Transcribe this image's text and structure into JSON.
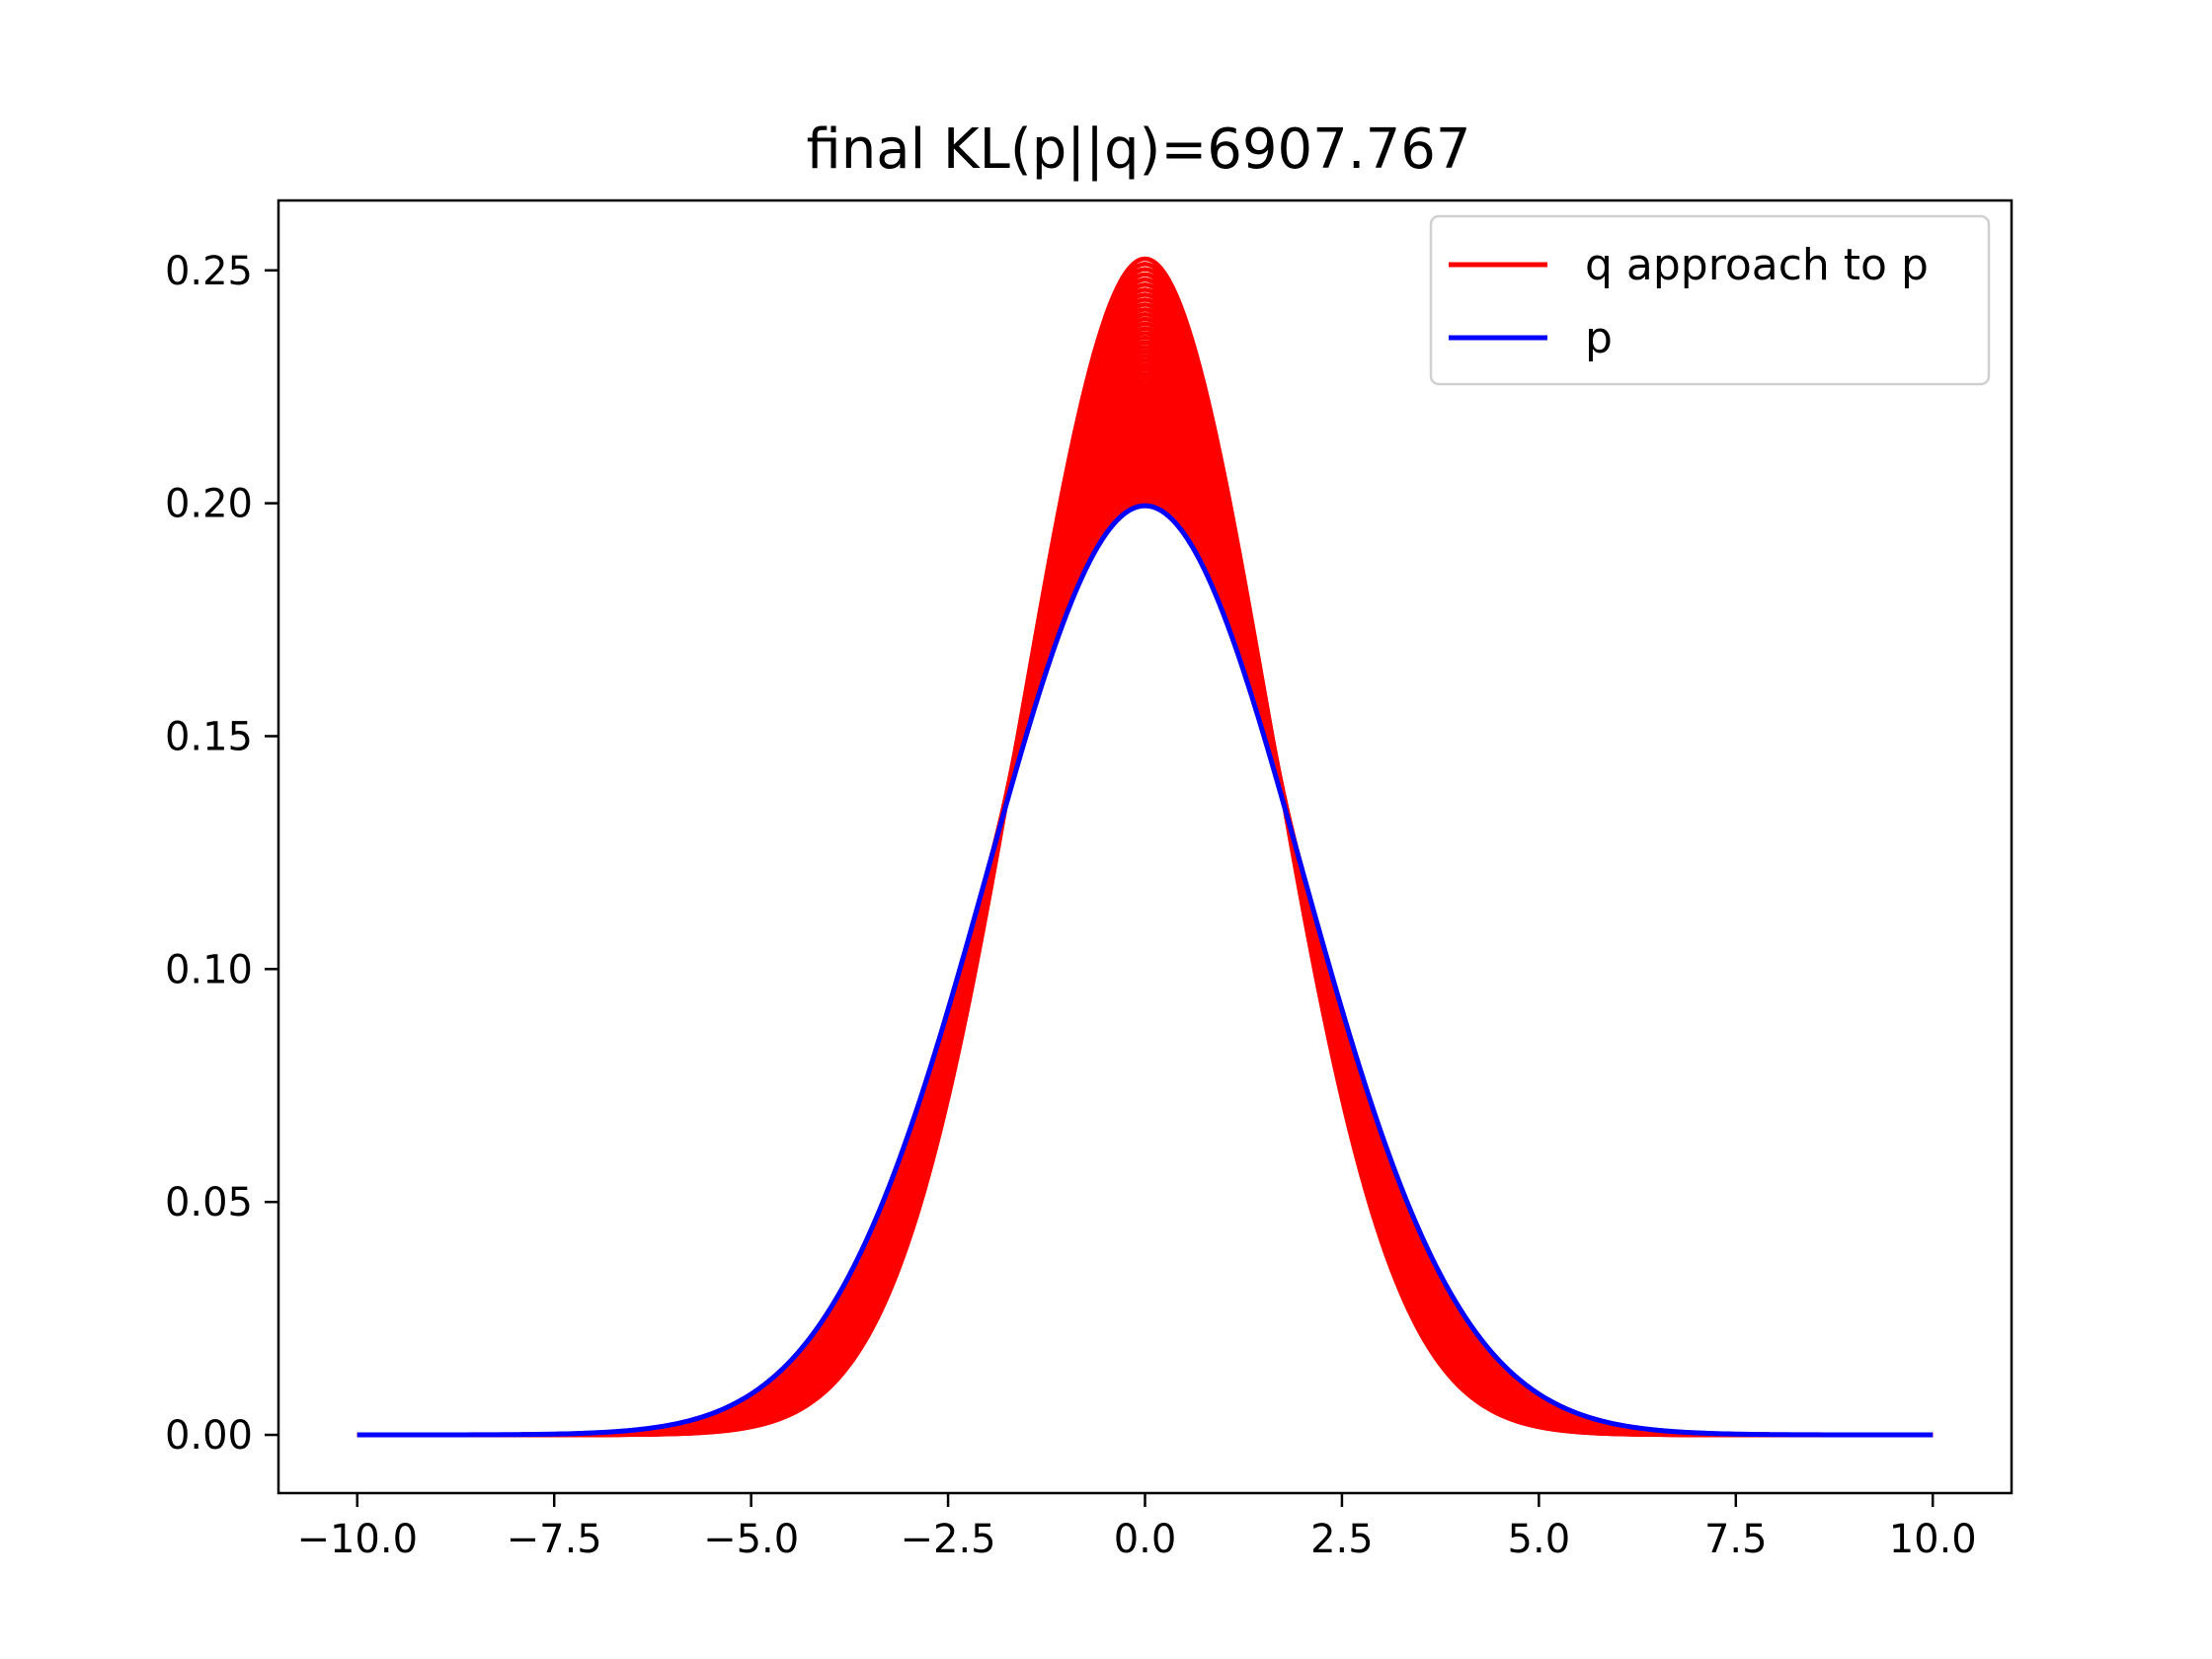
{
  "chart_data": {
    "type": "line",
    "title": "final KL(p||q)=6907.767",
    "xlabel": "",
    "ylabel": "",
    "xlim": [
      -11.0,
      11.0
    ],
    "ylim": [
      -0.0125,
      0.265
    ],
    "x_ticks": [
      -10.0,
      -7.5,
      -5.0,
      -2.5,
      0.0,
      2.5,
      5.0,
      7.5,
      10.0
    ],
    "x_tick_labels": [
      "−10.0",
      "−7.5",
      "−5.0",
      "−2.5",
      "0.0",
      "2.5",
      "5.0",
      "7.5",
      "10.0"
    ],
    "y_ticks": [
      0.0,
      0.05,
      0.1,
      0.15,
      0.2,
      0.25
    ],
    "y_tick_labels": [
      "0.00",
      "0.05",
      "0.10",
      "0.15",
      "0.20",
      "0.25"
    ],
    "x_range": [
      -10.0,
      10.0
    ],
    "grid": false,
    "legend": {
      "position": "top-right"
    },
    "series": [
      {
        "name": "q approach to p",
        "color": "#ff0000",
        "distribution": "normal",
        "mean": 0.0,
        "sigma_start": 1.58,
        "sigma_end": 2.0,
        "curve_count": 60
      },
      {
        "name": "p",
        "color": "#0000ff",
        "distribution": "normal",
        "mean": 0.0,
        "sigma": 2.0
      }
    ]
  }
}
